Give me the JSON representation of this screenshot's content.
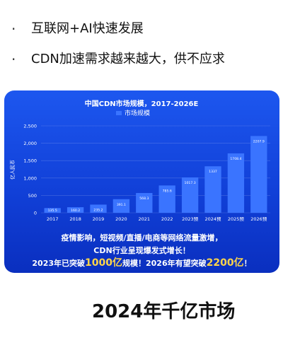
{
  "bullets": [
    {
      "marker": "·",
      "text": "互联网+AI快速发展"
    },
    {
      "marker": "·",
      "text": "CDN加速需求越来越大，供不应求"
    }
  ],
  "chart_data": {
    "type": "bar",
    "title": "中国CDN市场规模，2017-2026E",
    "legend": [
      "市场规模"
    ],
    "legend_position": "top",
    "ylabel": "亿人民币",
    "xlabel": "",
    "ylim": [
      0,
      2500
    ],
    "yticks": [
      "0",
      "500",
      "1,000",
      "1,500",
      "2,000",
      "2,500"
    ],
    "grid": true,
    "categories": [
      "2017",
      "2018",
      "2019",
      "2020",
      "2021",
      "2022",
      "2023E",
      "2024E",
      "2025E",
      "2026E"
    ],
    "category_labels": [
      "2017",
      "2018",
      "2019",
      "2020",
      "2021",
      "2022",
      "2023预",
      "2024预",
      "2025预",
      "2026预"
    ],
    "series": [
      {
        "name": "市场规模",
        "values": [
          135.5,
          160.2,
          235.2,
          391.1,
          568.3,
          785.6,
          1017.3,
          1337,
          1708.4,
          2207.9
        ]
      }
    ],
    "data_labels": [
      "135.5",
      "160.2",
      "235.2",
      "391.1",
      "568.3",
      "785.6",
      "1017.3",
      "1337",
      "1708.4",
      "2207.9"
    ],
    "colors": {
      "bar": "#3a74ff",
      "card": "#1450e6",
      "text": "#ffffff",
      "highlight": "#ffd54a"
    }
  },
  "footer": {
    "line1": "疫情影响，短视频/直播/电商等网络流量激增，",
    "line2": "CDN行业呈现爆发式增长！",
    "line3_prefix": "2023年已突破",
    "line3_hl1": "1000亿",
    "line3_mid": "规模！2026年有望突破",
    "line3_hl2": "2200亿",
    "line3_suffix": "！"
  },
  "heading": "2024年千亿市场"
}
